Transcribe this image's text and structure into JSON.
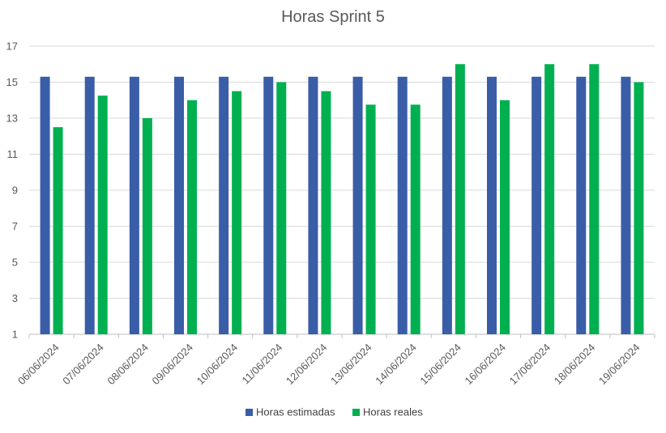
{
  "chart_data": {
    "type": "bar",
    "title": "Horas Sprint 5",
    "xlabel": "",
    "ylabel": "",
    "categories": [
      "06/06/2024",
      "07/06/2024",
      "08/06/2024",
      "09/06/2024",
      "10/06/2024",
      "11/06/2024",
      "12/06/2024",
      "13/06/2024",
      "14/06/2024",
      "15/06/2024",
      "16/06/2024",
      "17/06/2024",
      "18/06/2024",
      "19/06/2024"
    ],
    "series": [
      {
        "name": "Horas estimadas",
        "color": "#3a5da8",
        "values": [
          15.3,
          15.3,
          15.3,
          15.3,
          15.3,
          15.3,
          15.3,
          15.3,
          15.3,
          15.3,
          15.3,
          15.3,
          15.3,
          15.3
        ]
      },
      {
        "name": "Horas reales",
        "color": "#00b050",
        "values": [
          12.5,
          14.25,
          13,
          14,
          14.5,
          15,
          14.5,
          13.75,
          13.75,
          16,
          14,
          16,
          16,
          15
        ]
      }
    ],
    "ylim": [
      1,
      17
    ],
    "yticks": [
      1,
      3,
      5,
      7,
      9,
      11,
      13,
      15,
      17
    ],
    "grid": true,
    "legend": "bottom"
  }
}
